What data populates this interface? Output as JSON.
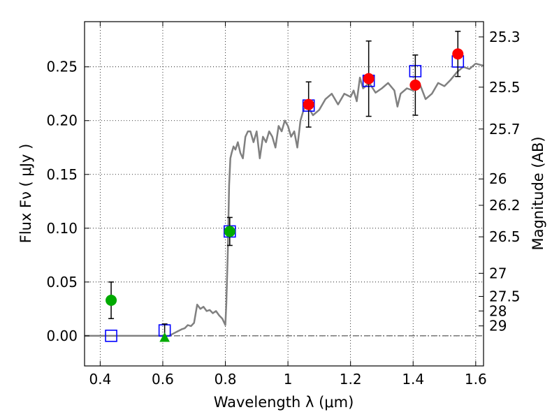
{
  "chart_data": {
    "type": "scatter",
    "xlabel": "Wavelength  λ (μm)",
    "ylabel": "Flux  Fν  ( μJy )",
    "y2label": "Magnitude (AB)",
    "xlim": [
      0.35,
      1.625
    ],
    "ylim": [
      -0.028,
      0.292
    ],
    "grid": true,
    "x_ticks": [
      0.4,
      0.6,
      0.8,
      1.0,
      1.2,
      1.4,
      1.6
    ],
    "x_tick_labels": [
      "0.4",
      "0.6",
      "0.8",
      "1",
      "1.2",
      "1.4",
      "1.6"
    ],
    "y_ticks": [
      0.0,
      0.05,
      0.1,
      0.15,
      0.2,
      0.25
    ],
    "y_tick_labels": [
      "0.00",
      "0.05",
      "0.10",
      "0.15",
      "0.20",
      "0.25"
    ],
    "mag_ticks": [
      {
        "label": "25.3",
        "flux": 0.2778
      },
      {
        "label": "25.5",
        "flux": 0.2311
      },
      {
        "label": "25.7",
        "flux": 0.1922
      },
      {
        "label": "26",
        "flux": 0.1458
      },
      {
        "label": "26.2",
        "flux": 0.1213
      },
      {
        "label": "26.5",
        "flux": 0.092
      },
      {
        "label": "27",
        "flux": 0.0581
      },
      {
        "label": "27.5",
        "flux": 0.0366
      },
      {
        "label": "28",
        "flux": 0.0231
      },
      {
        "label": "29",
        "flux": 0.0092
      }
    ],
    "series": [
      {
        "kind": "line",
        "color": "#808080",
        "x": [
          0.35,
          0.62,
          0.64,
          0.66,
          0.67,
          0.68,
          0.69,
          0.7,
          0.71,
          0.72,
          0.73,
          0.74,
          0.75,
          0.76,
          0.77,
          0.78,
          0.79,
          0.8,
          0.803,
          0.808,
          0.812,
          0.816,
          0.82,
          0.826,
          0.832,
          0.84,
          0.848,
          0.856,
          0.864,
          0.872,
          0.88,
          0.89,
          0.9,
          0.91,
          0.92,
          0.93,
          0.94,
          0.95,
          0.96,
          0.97,
          0.98,
          0.99,
          1.0,
          1.01,
          1.02,
          1.03,
          1.04,
          1.05,
          1.06,
          1.08,
          1.1,
          1.12,
          1.14,
          1.16,
          1.18,
          1.2,
          1.21,
          1.22,
          1.23,
          1.24,
          1.26,
          1.28,
          1.3,
          1.32,
          1.34,
          1.35,
          1.36,
          1.38,
          1.4,
          1.42,
          1.44,
          1.46,
          1.48,
          1.5,
          1.52,
          1.54,
          1.56,
          1.58,
          1.6,
          1.625
        ],
        "y": [
          0.0,
          0.0,
          0.003,
          0.006,
          0.007,
          0.01,
          0.009,
          0.012,
          0.029,
          0.025,
          0.027,
          0.023,
          0.024,
          0.021,
          0.023,
          0.019,
          0.016,
          0.01,
          0.03,
          0.08,
          0.14,
          0.165,
          0.17,
          0.176,
          0.173,
          0.18,
          0.17,
          0.165,
          0.185,
          0.19,
          0.19,
          0.18,
          0.19,
          0.165,
          0.185,
          0.18,
          0.19,
          0.185,
          0.175,
          0.195,
          0.19,
          0.2,
          0.195,
          0.185,
          0.19,
          0.175,
          0.2,
          0.21,
          0.215,
          0.205,
          0.21,
          0.22,
          0.225,
          0.215,
          0.225,
          0.222,
          0.228,
          0.218,
          0.24,
          0.23,
          0.235,
          0.226,
          0.23,
          0.235,
          0.228,
          0.213,
          0.225,
          0.23,
          0.228,
          0.235,
          0.22,
          0.225,
          0.235,
          0.232,
          0.238,
          0.245,
          0.25,
          0.248,
          0.253,
          0.251
        ]
      },
      {
        "kind": "points",
        "marker": "square",
        "color": "#0000ff",
        "x": [
          0.435,
          0.606,
          0.814,
          1.066,
          1.258,
          1.407,
          1.543
        ],
        "y": [
          0.0,
          0.005,
          0.097,
          0.214,
          0.237,
          0.246,
          0.255
        ]
      },
      {
        "kind": "points",
        "marker": "circle",
        "color": "#00aa00",
        "x": [
          0.435,
          0.814
        ],
        "y": [
          0.033,
          0.097
        ],
        "err": [
          0.017,
          0.013
        ]
      },
      {
        "kind": "points",
        "marker": "triangle",
        "color": "#00aa00",
        "x": [
          0.606
        ],
        "y": [
          -0.002
        ],
        "err_low": [
          -0.002
        ],
        "err_high": [
          0.011
        ]
      },
      {
        "kind": "points",
        "marker": "circle",
        "color": "#ff0000",
        "x": [
          1.066,
          1.258,
          1.407,
          1.543
        ],
        "y": [
          0.215,
          0.239,
          0.233,
          0.262
        ],
        "err": [
          0.021,
          0.035,
          0.028,
          0.021
        ]
      }
    ]
  }
}
